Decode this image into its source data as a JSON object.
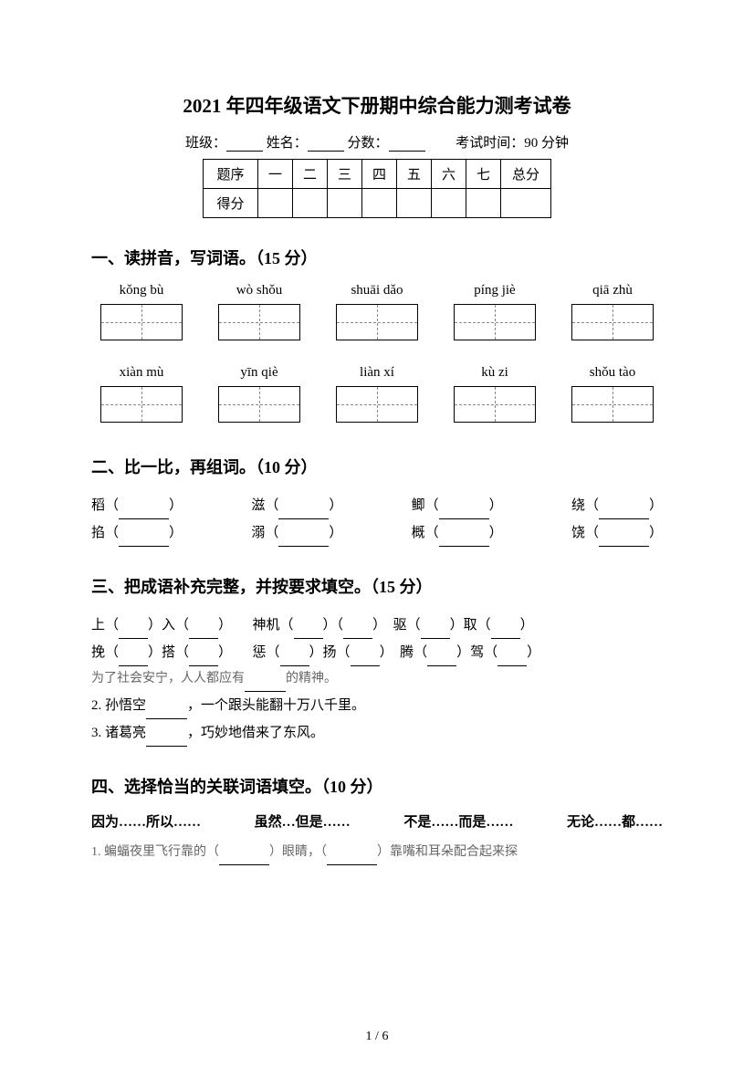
{
  "title": "2021 年四年级语文下册期中综合能力测考试卷",
  "header": {
    "class_label": "班级：",
    "name_label": "姓名：",
    "score_label": "分数：",
    "time_label": "考试时间：90 分钟"
  },
  "score_table": {
    "row1": [
      "题序",
      "一",
      "二",
      "三",
      "四",
      "五",
      "六",
      "七",
      "总分"
    ],
    "row2_label": "得分"
  },
  "section1": {
    "title": "一、读拼音，写词语。（15 分）",
    "pinyins_row1": [
      "kǒng bù",
      "wò shǒu",
      "shuāi dǎo",
      "píng jiè",
      "qiā zhù"
    ],
    "pinyins_row2": [
      "xiàn mù",
      "yīn qiè",
      "liàn xí",
      "kù zi",
      "shǒu tào"
    ]
  },
  "section2": {
    "title": "二、比一比，再组词。（10 分）",
    "row1": [
      "稻",
      "滋",
      "鲫",
      "绕"
    ],
    "row2": [
      "掐",
      "溺",
      "概",
      "饶"
    ]
  },
  "section3": {
    "title": "三、把成语补充完整，并按要求填空。（15 分）",
    "line1_parts": [
      "上（",
      "）入（",
      "）　　神机（",
      "）（",
      "）　驱（",
      "）取（",
      "）"
    ],
    "line2_parts": [
      "挽（",
      "）搭（",
      "）　　惩（",
      "）扬（",
      "）　腾（",
      "）驾（",
      "）"
    ],
    "line3": "为了社会安宁，人人都应有",
    "line3_end": "的精神。",
    "line4": "2. 孙悟空",
    "line4_end": "，一个跟头能翻十万八千里。",
    "line5": "3. 诸葛亮",
    "line5_end": "，巧妙地借来了东风。"
  },
  "section4": {
    "title": "四、选择恰当的关联词语填空。（10 分）",
    "options": [
      "因为……所以……",
      "虽然…但是……",
      "不是……而是……",
      "无论……都……"
    ],
    "q1_prefix": "1.  蝙蝠夜里飞行靠的（",
    "q1_mid": "）眼睛，（",
    "q1_end": "）靠嘴和耳朵配合起来探"
  },
  "page_num": "1 / 6"
}
